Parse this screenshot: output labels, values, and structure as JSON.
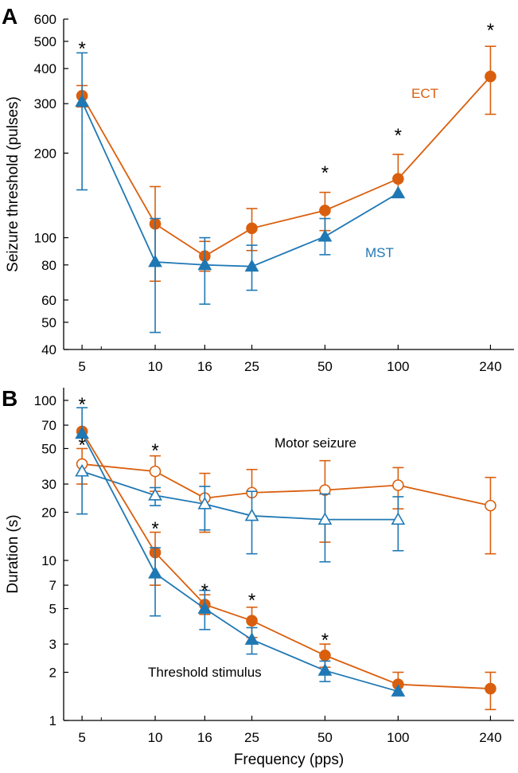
{
  "colors": {
    "ect": "#D95F0E",
    "mst": "#1F78B4",
    "axis": "#000000"
  },
  "chart_data": [
    {
      "panel": "A",
      "type": "line",
      "title": "",
      "xlabel": "",
      "ylabel": "Seizure threshold (pulses)",
      "xscale": "log",
      "yscale": "log",
      "xlim": [
        4.2,
        300
      ],
      "ylim": [
        40,
        600
      ],
      "x_ticks": [
        5,
        10,
        16,
        25,
        50,
        100,
        240
      ],
      "x_tick_labels": [
        "5",
        "10",
        "16",
        "25",
        "50",
        "100",
        "240"
      ],
      "y_ticks": [
        40,
        50,
        60,
        80,
        100,
        200,
        300,
        400,
        500,
        600
      ],
      "y_tick_labels": [
        "40",
        "50",
        "60",
        "80",
        "100",
        "200",
        "300",
        "400",
        "500",
        "600"
      ],
      "series": [
        {
          "name": "ECT",
          "label": "ECT",
          "marker": "circle",
          "filled": true,
          "color": "#D95F0E",
          "x": [
            5,
            10,
            16,
            25,
            50,
            100,
            240
          ],
          "values": [
            320,
            112,
            86,
            108,
            125,
            162,
            375
          ],
          "err_low": [
            292,
            70,
            76,
            90,
            106,
            141,
            275
          ],
          "err_high": [
            348,
            152,
            97,
            127,
            145,
            198,
            480
          ]
        },
        {
          "name": "MST",
          "label": "MST",
          "marker": "triangle",
          "filled": true,
          "color": "#1F78B4",
          "x": [
            5,
            10,
            16,
            25,
            50,
            100
          ],
          "values": [
            305,
            82,
            80,
            79,
            101,
            144
          ],
          "err_low": [
            148,
            46,
            58,
            65,
            87,
            null
          ],
          "err_high": [
            455,
            117,
            100,
            94,
            117,
            null
          ]
        }
      ],
      "significance_x": [
        5,
        50,
        100,
        240
      ],
      "significance_label": "*"
    },
    {
      "panel": "B",
      "type": "line",
      "title": "",
      "xlabel": "Frequency (pps)",
      "ylabel": "Duration (s)",
      "xscale": "log",
      "yscale": "log",
      "xlim": [
        4.2,
        300
      ],
      "ylim": [
        1,
        120
      ],
      "x_ticks": [
        5,
        10,
        16,
        25,
        50,
        100,
        240
      ],
      "x_tick_labels": [
        "5",
        "10",
        "16",
        "25",
        "50",
        "100",
        "240"
      ],
      "y_ticks": [
        1,
        2,
        3,
        5,
        7,
        10,
        20,
        30,
        50,
        70,
        100
      ],
      "y_tick_labels": [
        "1",
        "2",
        "3",
        "5",
        "7",
        "10",
        "20",
        "30",
        "50",
        "70",
        "100"
      ],
      "annotations": [
        "Motor seizure",
        "Threshold stimulus"
      ],
      "series": [
        {
          "name": "ECT motor seizure",
          "marker": "circle",
          "filled": false,
          "color": "#D95F0E",
          "x": [
            5,
            10,
            16,
            25,
            50,
            100,
            240
          ],
          "values": [
            40,
            36,
            24.5,
            26.5,
            27.5,
            29.5,
            22
          ],
          "err_low": [
            30,
            27,
            15,
            null,
            13,
            21,
            11
          ],
          "err_high": [
            50,
            45,
            35,
            37,
            42,
            38,
            33
          ]
        },
        {
          "name": "MST motor seizure",
          "marker": "triangle",
          "filled": false,
          "color": "#1F78B4",
          "x": [
            5,
            10,
            16,
            25,
            50,
            100
          ],
          "values": [
            36,
            25.5,
            22.5,
            19,
            18,
            18
          ],
          "err_low": [
            19.5,
            22,
            15.5,
            11,
            9.8,
            11.5
          ],
          "err_high": [
            null,
            28.5,
            29,
            27,
            26,
            25
          ]
        },
        {
          "name": "ECT threshold stimulus",
          "marker": "circle",
          "filled": true,
          "color": "#D95F0E",
          "x": [
            5,
            10,
            16,
            25,
            50,
            100,
            240
          ],
          "values": [
            64,
            11.2,
            5.3,
            4.2,
            2.55,
            1.68,
            1.58
          ],
          "err_low": [
            null,
            7,
            4.6,
            3.3,
            2.15,
            1.45,
            1.17
          ],
          "err_high": [
            null,
            15,
            6.1,
            5.1,
            3.0,
            2.0,
            2.0
          ]
        },
        {
          "name": "MST threshold stimulus",
          "marker": "triangle",
          "filled": true,
          "color": "#1F78B4",
          "x": [
            5,
            10,
            16,
            25,
            50,
            100
          ],
          "values": [
            62,
            8.3,
            5.0,
            3.2,
            2.05,
            1.52
          ],
          "err_low": [
            null,
            4.5,
            3.7,
            2.6,
            1.75,
            null
          ],
          "err_high": [
            90,
            12,
            6.5,
            3.8,
            2.35,
            null
          ]
        }
      ],
      "significance_x_motor": [
        5,
        10
      ],
      "significance_x_threshold": [
        5,
        10,
        16,
        25,
        50
      ],
      "significance_label": "*"
    }
  ],
  "panel_labels": {
    "a": "A",
    "b": "B"
  },
  "legend": {
    "ect": "ECT",
    "mst": "MST"
  }
}
